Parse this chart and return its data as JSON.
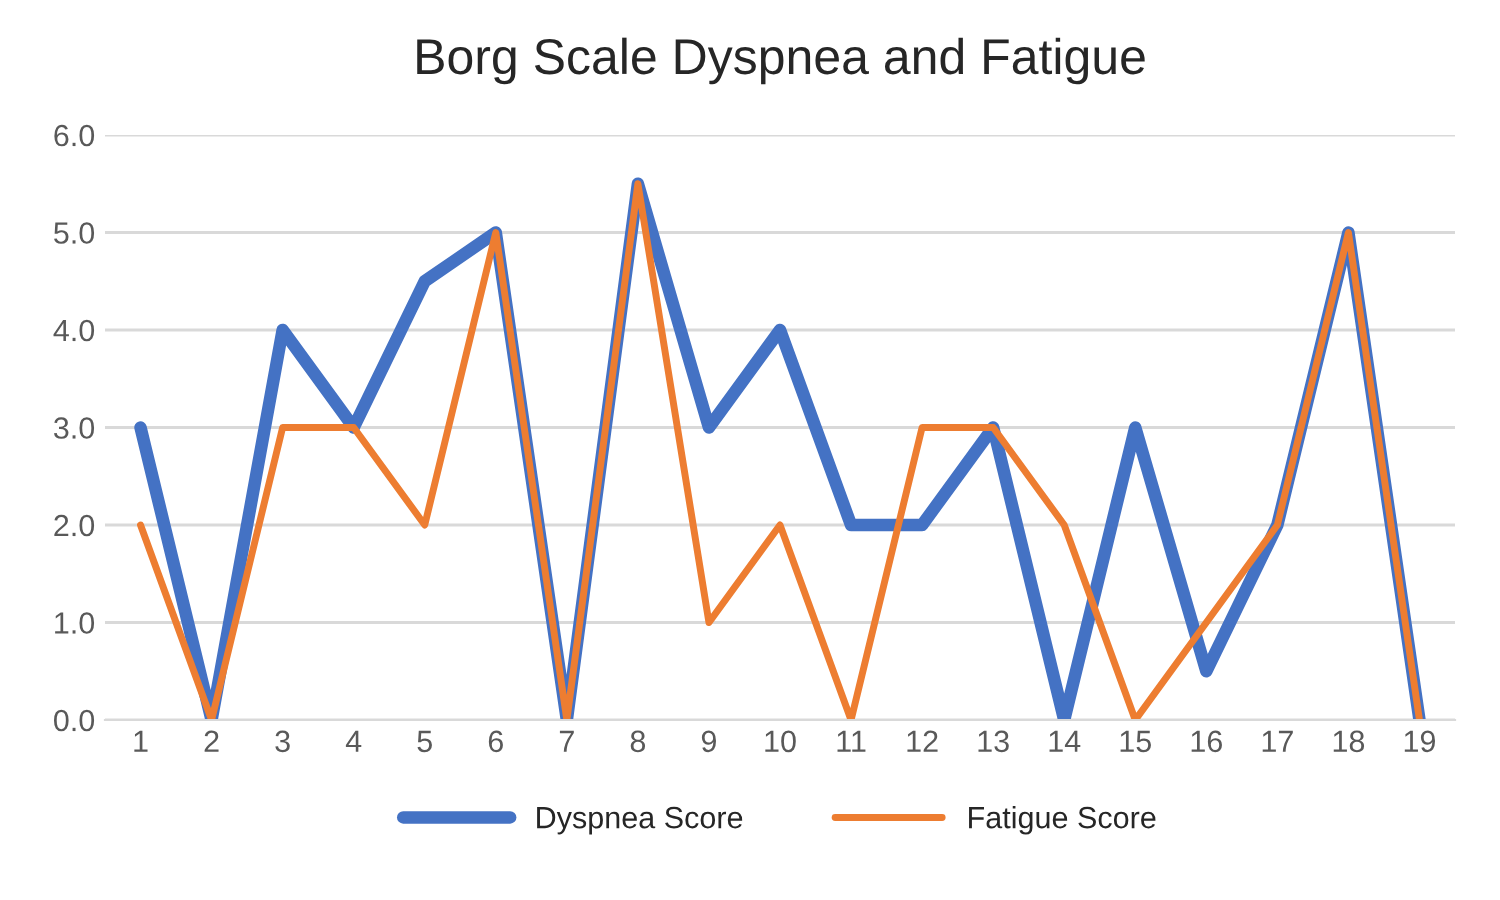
{
  "chart_data": {
    "type": "line",
    "title": "Borg Scale Dyspnea and Fatigue",
    "categories": [
      "1",
      "2",
      "3",
      "4",
      "5",
      "6",
      "7",
      "8",
      "9",
      "10",
      "11",
      "12",
      "13",
      "14",
      "15",
      "16",
      "17",
      "18",
      "19"
    ],
    "series": [
      {
        "name": "Dyspnea Score",
        "color": "#4472c4",
        "values": [
          3,
          0,
          4,
          3,
          4.5,
          5,
          0,
          5.5,
          3,
          4,
          2,
          2,
          3,
          0,
          3,
          0.5,
          2,
          5,
          0
        ]
      },
      {
        "name": "Fatigue Score",
        "color": "#ed7d31",
        "values": [
          2,
          0,
          3,
          3,
          2,
          5,
          0,
          5.5,
          1,
          2,
          0,
          3,
          3,
          2,
          0,
          1,
          2,
          5,
          0
        ]
      }
    ],
    "ylim": [
      0,
      6
    ],
    "yticks": [
      {
        "value": 0,
        "label": "0.0"
      },
      {
        "value": 1,
        "label": "1.0"
      },
      {
        "value": 2,
        "label": "2.0"
      },
      {
        "value": 3,
        "label": "3.0"
      },
      {
        "value": 4,
        "label": "4.0"
      },
      {
        "value": 5,
        "label": "5.0"
      },
      {
        "value": 6,
        "label": "6.0"
      }
    ],
    "grid": "y",
    "legend": "bottom",
    "marker": "none",
    "line_style": "solid"
  }
}
